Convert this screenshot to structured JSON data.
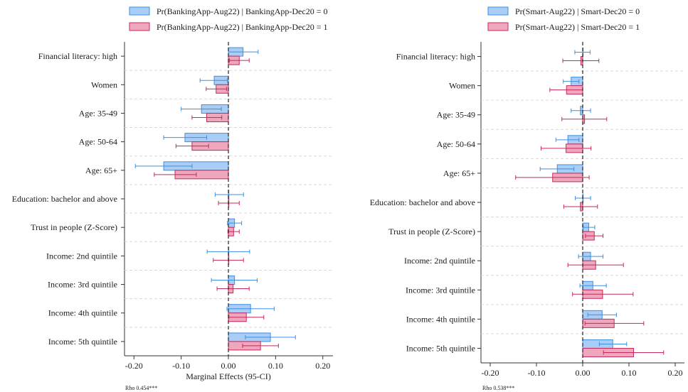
{
  "colors": {
    "blue_fill": "#a9cdf5",
    "blue_stroke": "#3d8fe3",
    "pink_fill": "#eea7bd",
    "pink_stroke": "#c42a5a",
    "grid": "#d9d9d9",
    "zero": "#222222"
  },
  "chart_data": [
    {
      "type": "bar",
      "orientation": "horizontal",
      "xlabel": "Marginal Effects (95-CI)",
      "note": "Rho 0.454***",
      "xlim": [
        -0.22,
        0.22
      ],
      "xticks": [
        -0.2,
        -0.1,
        0.0,
        0.1,
        0.2
      ],
      "xtick_labels": [
        "-0.20",
        "-0.10",
        "0.00",
        "0.10",
        "0.20"
      ],
      "legend_position": "top-center",
      "categories": [
        "Financial literacy: high",
        "Women",
        "Age: 35-49",
        "Age: 50-64",
        "Age: 65+",
        "Education: bachelor and above",
        "Trust in people (Z-Score)",
        "Income: 2nd quintile",
        "Income: 3rd quintile",
        "Income: 4th quintile",
        "Income: 5th quintile"
      ],
      "series": [
        {
          "name": "Pr(BankingApp-Aug22) | BankingApp-Dec20 = 0",
          "color": "blue",
          "values": [
            0.031,
            -0.03,
            -0.057,
            -0.092,
            -0.137,
            0.001,
            0.013,
            0.0,
            0.013,
            0.047,
            0.089
          ],
          "ci_low": [
            0.0,
            -0.06,
            -0.1,
            -0.137,
            -0.197,
            -0.028,
            -0.002,
            -0.045,
            -0.036,
            -0.003,
            0.036
          ],
          "ci_high": [
            0.063,
            -0.002,
            -0.015,
            -0.046,
            -0.077,
            0.032,
            0.028,
            0.045,
            0.061,
            0.097,
            0.142
          ]
        },
        {
          "name": "Pr(BankingApp-Aug22) | BankingApp-Dec20 = 1",
          "color": "pink",
          "values": [
            0.023,
            -0.026,
            -0.046,
            -0.077,
            -0.113,
            0.001,
            0.011,
            0.0,
            0.01,
            0.038,
            0.068
          ],
          "ci_low": [
            0.002,
            -0.047,
            -0.077,
            -0.111,
            -0.157,
            -0.021,
            -0.001,
            -0.032,
            -0.024,
            0.001,
            0.03
          ],
          "ci_high": [
            0.044,
            -0.004,
            -0.014,
            -0.042,
            -0.068,
            0.023,
            0.023,
            0.032,
            0.044,
            0.075,
            0.106
          ]
        }
      ]
    },
    {
      "type": "bar",
      "orientation": "horizontal",
      "xlabel": "",
      "note": "Rho 0.538***",
      "xlim": [
        -0.22,
        0.22
      ],
      "xticks": [
        -0.2,
        -0.1,
        0.0,
        0.1,
        0.2
      ],
      "xtick_labels": [
        "-0.20",
        "-0.10",
        "0.00",
        "0.10",
        "0.20"
      ],
      "legend_position": "top-center",
      "categories": [
        "Financial literacy: high",
        "Women",
        "Age: 35-49",
        "Age: 50-64",
        "Age: 65+",
        "Education: bachelor and above",
        "Trust in people (Z-Score)",
        "Income: 2nd quintile",
        "Income: 3rd quintile",
        "Income: 4th quintile",
        "Income: 5th quintile"
      ],
      "series": [
        {
          "name": "Pr(Smart-Aug22) | Smart-Dec20 = 0",
          "color": "blue",
          "values": [
            0.0,
            -0.025,
            -0.005,
            -0.032,
            -0.055,
            0.0,
            0.013,
            0.017,
            0.022,
            0.042,
            0.065
          ],
          "ci_low": [
            -0.017,
            -0.042,
            -0.025,
            -0.058,
            -0.092,
            -0.016,
            0.001,
            -0.009,
            -0.006,
            0.011,
            0.036
          ],
          "ci_high": [
            0.016,
            -0.008,
            0.017,
            -0.008,
            -0.019,
            0.017,
            0.026,
            0.044,
            0.051,
            0.073,
            0.095
          ]
        },
        {
          "name": "Pr(Smart-Aug22) | Smart-Dec20 = 1",
          "color": "pink",
          "values": [
            -0.004,
            -0.035,
            0.004,
            -0.036,
            -0.065,
            -0.005,
            0.025,
            0.028,
            0.043,
            0.068,
            0.11
          ],
          "ci_low": [
            -0.043,
            -0.071,
            -0.045,
            -0.09,
            -0.145,
            -0.041,
            0.006,
            -0.032,
            -0.022,
            0.005,
            0.045
          ],
          "ci_high": [
            0.035,
            0.0,
            0.052,
            0.018,
            0.014,
            0.032,
            0.044,
            0.088,
            0.109,
            0.132,
            0.175
          ]
        }
      ]
    }
  ]
}
